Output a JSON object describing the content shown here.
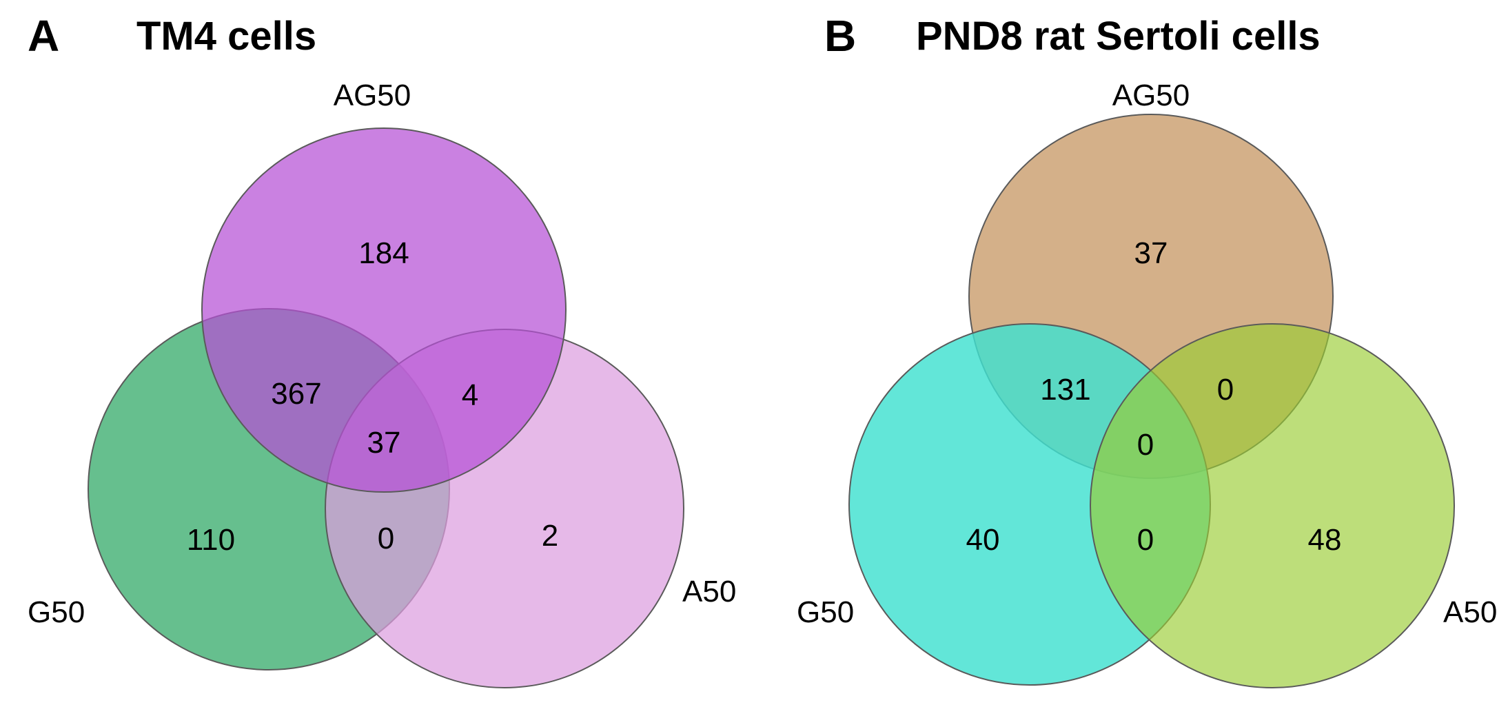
{
  "figure": {
    "panels": [
      {
        "letter": "A",
        "title": "TM4 cells",
        "sets": {
          "top": {
            "label": "AG50",
            "color": "#b651d6"
          },
          "left": {
            "label": "G50",
            "color": "#55b882"
          },
          "right": {
            "label": "A50",
            "color": "#dd9edf"
          }
        },
        "regions": {
          "top_only": "184",
          "left_only": "110",
          "right_only": "2",
          "top_left": "367",
          "top_right": "4",
          "left_right": "0",
          "all_three": "37"
        }
      },
      {
        "letter": "B",
        "title": "PND8 rat Sertoli cells",
        "sets": {
          "top": {
            "label": "AG50",
            "color": "#d4b089"
          },
          "left": {
            "label": "G50",
            "color": "#40e0d0"
          },
          "right": {
            "label": "A50",
            "color": "#9acd32"
          }
        },
        "regions": {
          "top_only": "37",
          "left_only": "40",
          "right_only": "48",
          "top_left": "131",
          "top_right": "0",
          "left_right": "0",
          "all_three": "0"
        }
      }
    ]
  }
}
